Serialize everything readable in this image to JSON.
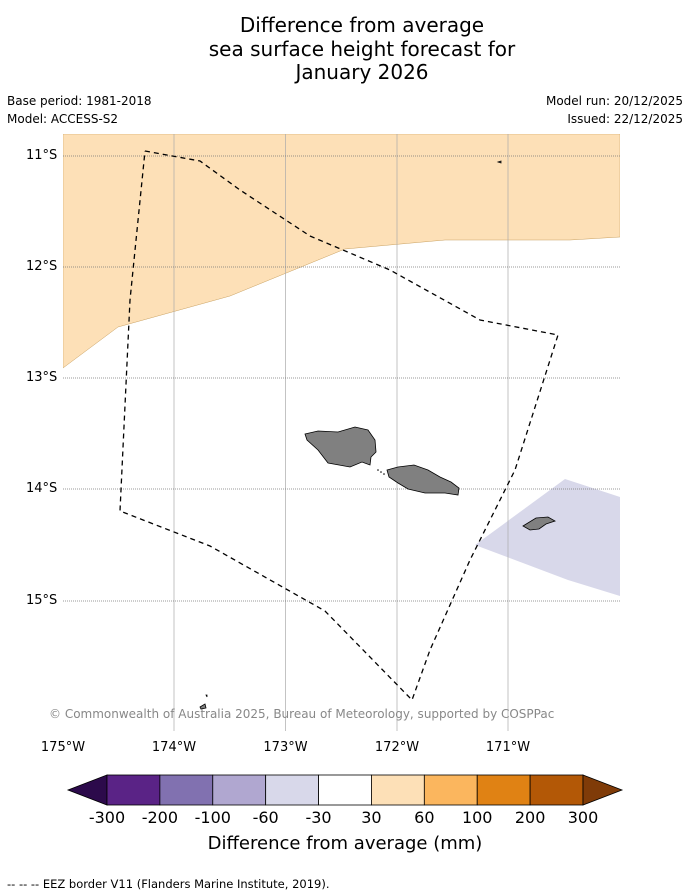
{
  "title": {
    "line1": "Difference from average",
    "line2": "sea surface height forecast for",
    "line3": "January 2026"
  },
  "meta": {
    "base_period": "Base period: 1981-2018",
    "model": "Model: ACCESS-S2",
    "model_run": "Model run: 20/12/2025",
    "issued": "Issued: 22/12/2025"
  },
  "map": {
    "region": "Samoa",
    "lat_labels": [
      "11°S",
      "12°S",
      "13°S",
      "14°S",
      "15°S"
    ],
    "lon_labels": [
      "175°W",
      "174°W",
      "173°W",
      "172°W",
      "171°W"
    ],
    "lon_range": [
      -175,
      -170
    ],
    "lat_range": [
      -16.05,
      -10.8
    ],
    "copyright": "© Commonwealth of Australia 2025, Bureau of Meteorology, supported by COSPPac",
    "anomaly_colors": {
      "pos_30_60": "#fde0b7",
      "neg_30_60": "#d8d8ea"
    }
  },
  "colorbar": {
    "ticks": [
      "-300",
      "-200",
      "-100",
      "-60",
      "-30",
      "30",
      "60",
      "100",
      "200",
      "300"
    ],
    "colors": {
      "under": "#2c0a4b",
      "bins": [
        "#5a2386",
        "#8171b0",
        "#b0a7d0",
        "#d8d8ea",
        "#ffffff",
        "#fde0b7",
        "#fbb65e",
        "#e08214",
        "#b35806"
      ],
      "over": "#7f3b08"
    },
    "label": "Difference from average (mm)"
  },
  "footer": {
    "legend_line": "--  --  -- EEZ border V11 (Flanders Marine Institute, 2019)."
  }
}
